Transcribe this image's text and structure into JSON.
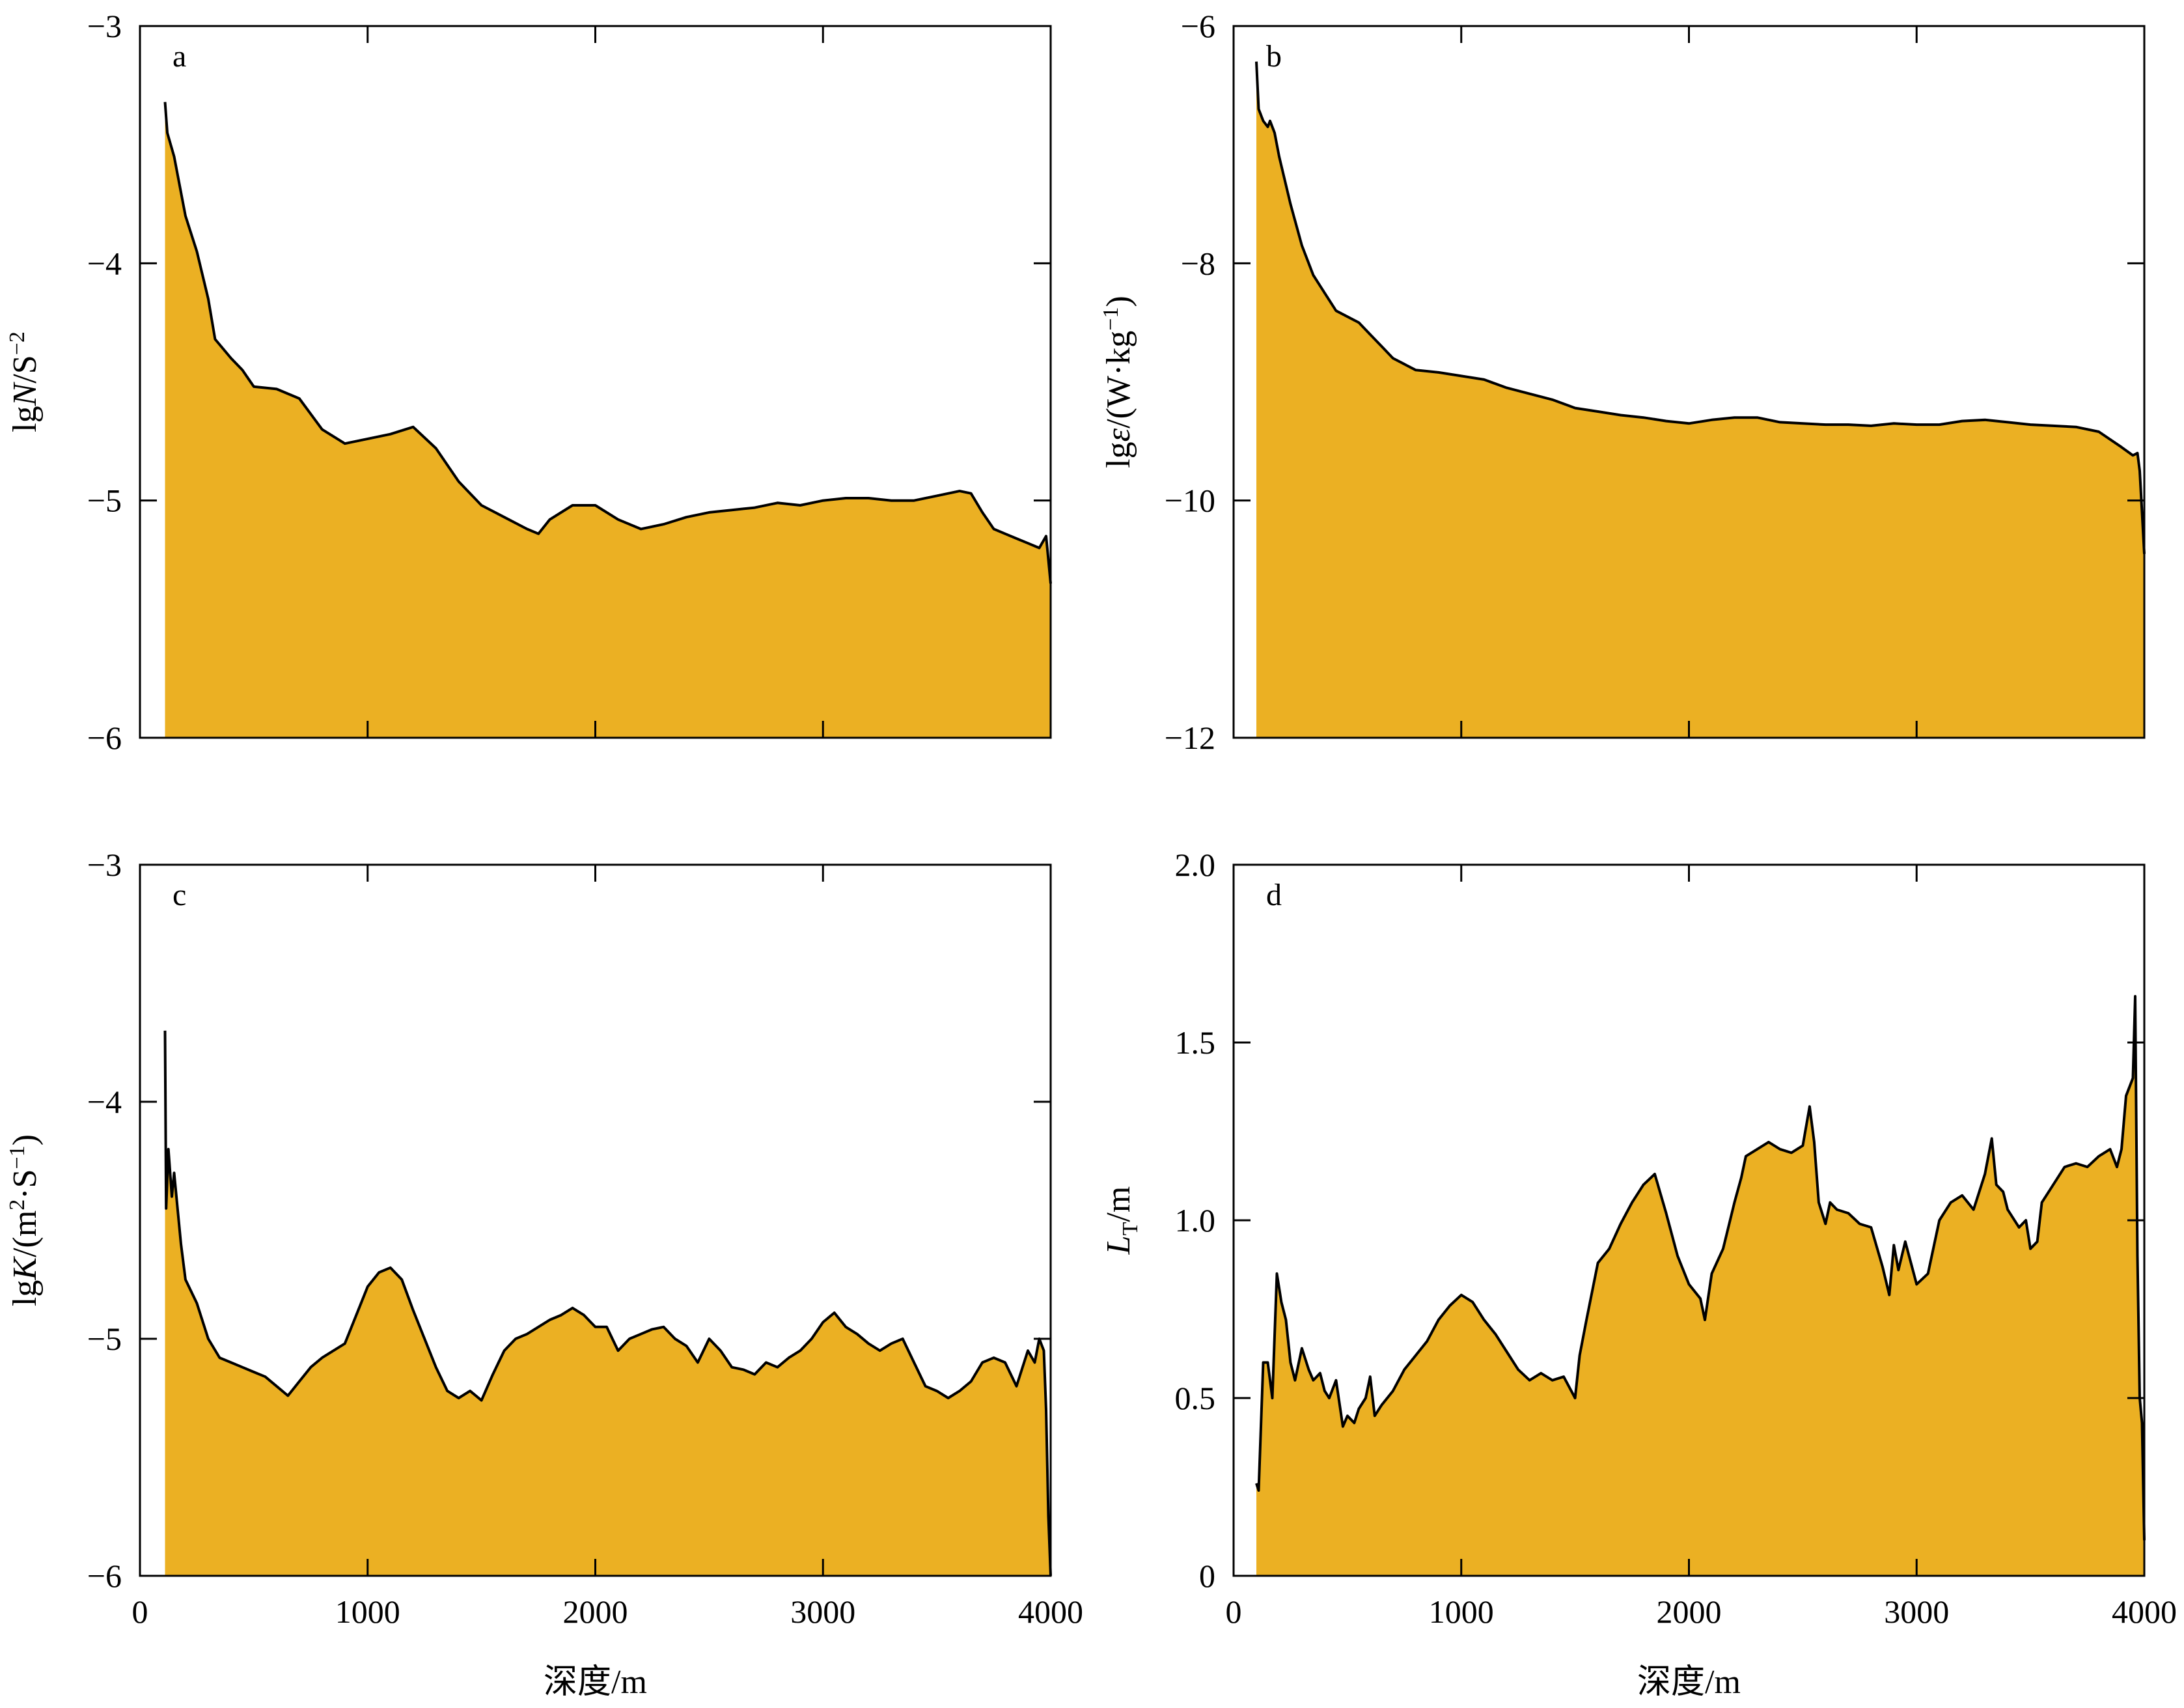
{
  "colors": {
    "fill": "#ebb023",
    "line": "#000000"
  },
  "chart_data": [
    {
      "type": "area",
      "panel": "a",
      "ylabel": "lgN/S⁻²",
      "ylabel_parts": [
        {
          "t": "lg",
          "s": "normal"
        },
        {
          "t": "N",
          "s": "italic"
        },
        {
          "t": "/S",
          "s": "normal"
        },
        {
          "t": "−2",
          "s": "sup"
        }
      ],
      "xlabel": "",
      "xlim": [
        0,
        4000
      ],
      "ylim": [
        -6,
        -3
      ],
      "xticks": [
        0,
        1000,
        2000,
        3000,
        4000
      ],
      "xtick_labels": [
        "",
        "",
        "",
        "",
        ""
      ],
      "yticks": [
        -6,
        -5,
        -4,
        -3
      ],
      "ytick_labels": [
        "−6",
        "−5",
        "−4",
        "−3"
      ],
      "x": [
        110,
        120,
        150,
        200,
        250,
        300,
        330,
        400,
        450,
        500,
        600,
        700,
        800,
        900,
        1000,
        1100,
        1200,
        1300,
        1400,
        1500,
        1600,
        1700,
        1750,
        1800,
        1900,
        2000,
        2100,
        2200,
        2300,
        2400,
        2500,
        2600,
        2700,
        2800,
        2900,
        3000,
        3100,
        3200,
        3300,
        3400,
        3500,
        3600,
        3650,
        3700,
        3750,
        3800,
        3850,
        3900,
        3950,
        3980,
        4000
      ],
      "y": [
        -3.32,
        -3.45,
        -3.55,
        -3.8,
        -3.95,
        -4.15,
        -4.32,
        -4.4,
        -4.45,
        -4.52,
        -4.53,
        -4.57,
        -4.7,
        -4.76,
        -4.74,
        -4.72,
        -4.69,
        -4.78,
        -4.92,
        -5.02,
        -5.07,
        -5.12,
        -5.14,
        -5.08,
        -5.02,
        -5.02,
        -5.08,
        -5.12,
        -5.1,
        -5.07,
        -5.05,
        -5.04,
        -5.03,
        -5.01,
        -5.02,
        -5.0,
        -4.99,
        -4.99,
        -5.0,
        -5.0,
        -4.98,
        -4.96,
        -4.97,
        -5.05,
        -5.12,
        -5.14,
        -5.16,
        -5.18,
        -5.2,
        -5.15,
        -5.35
      ]
    },
    {
      "type": "area",
      "panel": "b",
      "ylabel": "lgε/(W·kg⁻¹)",
      "ylabel_parts": [
        {
          "t": "lg",
          "s": "normal"
        },
        {
          "t": "ε",
          "s": "italic"
        },
        {
          "t": "/(W·kg",
          "s": "normal"
        },
        {
          "t": "−1",
          "s": "sup"
        },
        {
          "t": ")",
          "s": "normal"
        }
      ],
      "xlabel": "",
      "xlim": [
        0,
        4000
      ],
      "ylim": [
        -12,
        -6
      ],
      "xticks": [
        0,
        1000,
        2000,
        3000,
        4000
      ],
      "xtick_labels": [
        "",
        "",
        "",
        "",
        ""
      ],
      "yticks": [
        -12,
        -10,
        -8,
        -6
      ],
      "ytick_labels": [
        "−12",
        "−10",
        "−8",
        "−6"
      ],
      "x": [
        100,
        110,
        130,
        150,
        160,
        180,
        200,
        250,
        300,
        350,
        400,
        450,
        500,
        550,
        600,
        650,
        700,
        750,
        800,
        900,
        1000,
        1100,
        1200,
        1300,
        1400,
        1500,
        1600,
        1700,
        1800,
        1900,
        2000,
        2100,
        2200,
        2300,
        2400,
        2500,
        2600,
        2700,
        2800,
        2900,
        3000,
        3100,
        3200,
        3300,
        3400,
        3500,
        3600,
        3700,
        3800,
        3900,
        3950,
        3970,
        3980,
        4000
      ],
      "y": [
        -6.3,
        -6.7,
        -6.8,
        -6.85,
        -6.8,
        -6.9,
        -7.1,
        -7.5,
        -7.85,
        -8.1,
        -8.25,
        -8.4,
        -8.45,
        -8.5,
        -8.6,
        -8.7,
        -8.8,
        -8.85,
        -8.9,
        -8.92,
        -8.95,
        -8.98,
        -9.05,
        -9.1,
        -9.15,
        -9.22,
        -9.25,
        -9.28,
        -9.3,
        -9.33,
        -9.35,
        -9.32,
        -9.3,
        -9.3,
        -9.34,
        -9.35,
        -9.36,
        -9.36,
        -9.37,
        -9.35,
        -9.36,
        -9.36,
        -9.33,
        -9.32,
        -9.34,
        -9.36,
        -9.37,
        -9.38,
        -9.42,
        -9.55,
        -9.62,
        -9.6,
        -9.75,
        -10.45
      ]
    },
    {
      "type": "area",
      "panel": "c",
      "ylabel": "lgK/(m²·S⁻¹)",
      "ylabel_parts": [
        {
          "t": "lg",
          "s": "normal"
        },
        {
          "t": "K",
          "s": "italic"
        },
        {
          "t": "/(m",
          "s": "normal"
        },
        {
          "t": "2",
          "s": "sup"
        },
        {
          "t": "·S",
          "s": "normal"
        },
        {
          "t": "−1",
          "s": "sup"
        },
        {
          "t": ")",
          "s": "normal"
        }
      ],
      "xlabel": "深度/m",
      "xlim": [
        0,
        4000
      ],
      "ylim": [
        -6,
        -3
      ],
      "xticks": [
        0,
        1000,
        2000,
        3000,
        4000
      ],
      "xtick_labels": [
        "0",
        "1000",
        "2000",
        "3000",
        "4000"
      ],
      "yticks": [
        -6,
        -5,
        -4,
        -3
      ],
      "ytick_labels": [
        "−6",
        "−5",
        "−4",
        "−3"
      ],
      "x": [
        110,
        115,
        125,
        140,
        150,
        180,
        200,
        250,
        300,
        350,
        400,
        450,
        500,
        550,
        600,
        650,
        700,
        750,
        800,
        850,
        900,
        950,
        1000,
        1050,
        1100,
        1150,
        1200,
        1250,
        1300,
        1350,
        1400,
        1450,
        1500,
        1550,
        1600,
        1650,
        1700,
        1750,
        1800,
        1850,
        1900,
        1950,
        2000,
        2050,
        2100,
        2150,
        2200,
        2250,
        2300,
        2350,
        2400,
        2450,
        2500,
        2550,
        2600,
        2650,
        2700,
        2750,
        2800,
        2850,
        2900,
        2950,
        3000,
        3050,
        3100,
        3150,
        3200,
        3250,
        3300,
        3350,
        3400,
        3450,
        3500,
        3550,
        3600,
        3650,
        3700,
        3750,
        3800,
        3850,
        3900,
        3930,
        3950,
        3970,
        3980,
        3990,
        4000
      ],
      "y": [
        -3.7,
        -4.45,
        -4.2,
        -4.4,
        -4.3,
        -4.6,
        -4.75,
        -4.85,
        -5.0,
        -5.08,
        -5.1,
        -5.12,
        -5.14,
        -5.16,
        -5.2,
        -5.24,
        -5.18,
        -5.12,
        -5.08,
        -5.05,
        -5.02,
        -4.9,
        -4.78,
        -4.72,
        -4.7,
        -4.75,
        -4.88,
        -5.0,
        -5.12,
        -5.22,
        -5.25,
        -5.22,
        -5.26,
        -5.15,
        -5.05,
        -5.0,
        -4.98,
        -4.95,
        -4.92,
        -4.9,
        -4.87,
        -4.9,
        -4.95,
        -4.95,
        -5.05,
        -5.0,
        -4.98,
        -4.96,
        -4.95,
        -5.0,
        -5.03,
        -5.1,
        -5.0,
        -5.05,
        -5.12,
        -5.13,
        -5.15,
        -5.1,
        -5.12,
        -5.08,
        -5.05,
        -5.0,
        -4.93,
        -4.89,
        -4.95,
        -4.98,
        -5.02,
        -5.05,
        -5.02,
        -5.0,
        -5.1,
        -5.2,
        -5.22,
        -5.25,
        -5.22,
        -5.18,
        -5.1,
        -5.08,
        -5.1,
        -5.2,
        -5.05,
        -5.1,
        -5.0,
        -5.05,
        -5.3,
        -5.75,
        -6.0
      ]
    },
    {
      "type": "area",
      "panel": "d",
      "ylabel": "LT/m",
      "ylabel_parts": [
        {
          "t": "L",
          "s": "italic"
        },
        {
          "t": "T",
          "s": "sub"
        },
        {
          "t": "/m",
          "s": "normal"
        }
      ],
      "xlabel": "深度/m",
      "xlim": [
        0,
        4000
      ],
      "ylim": [
        0,
        2.0
      ],
      "xticks": [
        0,
        1000,
        2000,
        3000,
        4000
      ],
      "xtick_labels": [
        "0",
        "1000",
        "2000",
        "3000",
        "4000"
      ],
      "yticks": [
        0,
        0.5,
        1.0,
        1.5,
        2.0
      ],
      "ytick_labels": [
        "0",
        "0.5",
        "1.0",
        "1.5",
        "2.0"
      ],
      "x": [
        100,
        110,
        130,
        150,
        170,
        190,
        210,
        230,
        250,
        270,
        300,
        330,
        350,
        380,
        400,
        420,
        450,
        480,
        500,
        530,
        550,
        580,
        600,
        620,
        650,
        700,
        750,
        800,
        850,
        900,
        950,
        1000,
        1050,
        1100,
        1150,
        1200,
        1250,
        1300,
        1350,
        1400,
        1450,
        1500,
        1520,
        1550,
        1600,
        1650,
        1700,
        1750,
        1800,
        1850,
        1900,
        1950,
        2000,
        2050,
        2070,
        2100,
        2150,
        2200,
        2230,
        2250,
        2300,
        2350,
        2400,
        2450,
        2500,
        2530,
        2550,
        2570,
        2600,
        2620,
        2650,
        2700,
        2750,
        2800,
        2850,
        2880,
        2900,
        2920,
        2950,
        3000,
        3050,
        3100,
        3150,
        3200,
        3250,
        3300,
        3330,
        3350,
        3380,
        3400,
        3450,
        3480,
        3500,
        3530,
        3550,
        3600,
        3650,
        3700,
        3750,
        3800,
        3850,
        3880,
        3900,
        3920,
        3950,
        3960,
        3970,
        3980,
        3990,
        4000
      ],
      "y": [
        0.26,
        0.24,
        0.6,
        0.6,
        0.5,
        0.85,
        0.77,
        0.72,
        0.6,
        0.55,
        0.64,
        0.58,
        0.55,
        0.57,
        0.52,
        0.5,
        0.55,
        0.42,
        0.45,
        0.43,
        0.47,
        0.5,
        0.56,
        0.45,
        0.48,
        0.52,
        0.58,
        0.62,
        0.66,
        0.72,
        0.76,
        0.79,
        0.77,
        0.72,
        0.68,
        0.63,
        0.58,
        0.55,
        0.57,
        0.55,
        0.56,
        0.5,
        0.62,
        0.72,
        0.88,
        0.92,
        0.99,
        1.05,
        1.1,
        1.13,
        1.02,
        0.9,
        0.82,
        0.78,
        0.72,
        0.85,
        0.92,
        1.05,
        1.12,
        1.18,
        1.2,
        1.22,
        1.2,
        1.19,
        1.21,
        1.32,
        1.22,
        1.05,
        0.99,
        1.05,
        1.03,
        1.02,
        0.99,
        0.98,
        0.87,
        0.79,
        0.93,
        0.86,
        0.94,
        0.82,
        0.85,
        1.0,
        1.05,
        1.07,
        1.03,
        1.13,
        1.23,
        1.1,
        1.08,
        1.03,
        0.98,
        1.0,
        0.92,
        0.94,
        1.05,
        1.1,
        1.15,
        1.16,
        1.15,
        1.18,
        1.2,
        1.15,
        1.2,
        1.35,
        1.4,
        1.63,
        0.9,
        0.5,
        0.43,
        0.1
      ]
    }
  ]
}
